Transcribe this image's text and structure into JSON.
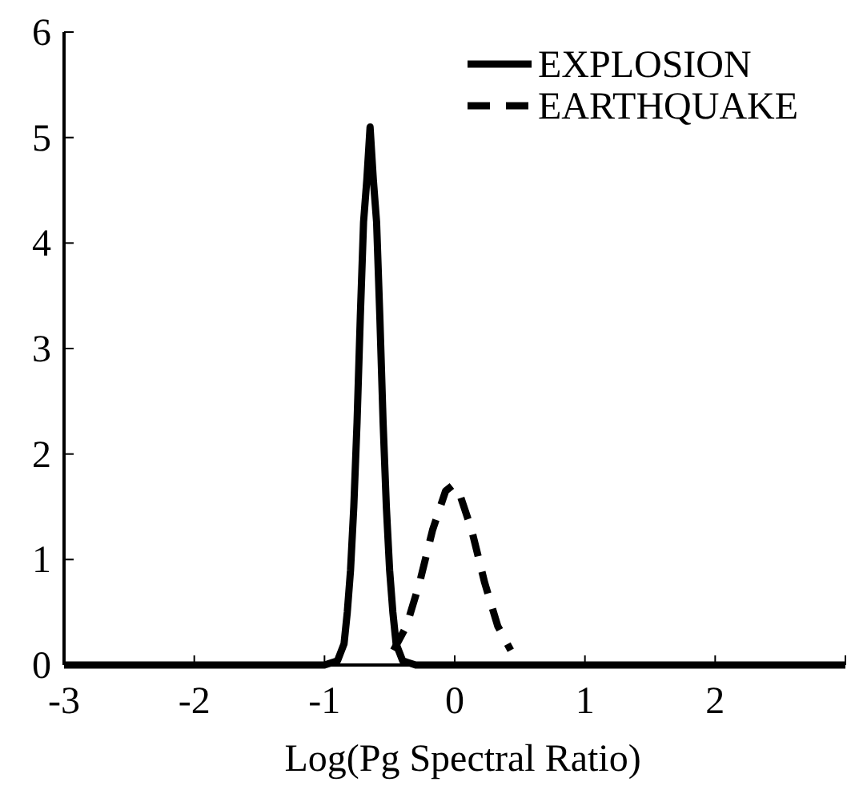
{
  "chart_data": {
    "type": "line",
    "xlabel": "Log(Pg Spectral Ratio)",
    "xlim": [
      -3,
      3
    ],
    "ylim": [
      0,
      6
    ],
    "xticks": [
      -3,
      -2,
      -1,
      0,
      1,
      2,
      {
        "value": 3,
        "label": null
      }
    ],
    "yticks": [
      0,
      1,
      2,
      3,
      4,
      5,
      6
    ],
    "grid": false,
    "legend": "top right",
    "marker": "none",
    "series": [
      {
        "name": "EXPLOSION",
        "color": "#000000",
        "line_style": "solid",
        "x": [
          -3,
          -1,
          -0.9,
          -0.85,
          -0.825,
          -0.8,
          -0.775,
          -0.75,
          -0.725,
          -0.7,
          -0.675,
          -0.65,
          -0.625,
          -0.6,
          -0.575,
          -0.55,
          -0.525,
          -0.5,
          -0.475,
          -0.45,
          -0.4,
          -0.3,
          3
        ],
        "values": [
          0,
          0,
          0.04,
          0.2,
          0.5,
          0.9,
          1.5,
          2.3,
          3.3,
          4.2,
          4.6,
          5.1,
          4.6,
          4.2,
          3.3,
          2.3,
          1.5,
          0.9,
          0.5,
          0.2,
          0.04,
          0,
          0
        ]
      },
      {
        "name": "EARTHQUAKE",
        "color": "#000000",
        "line_style": "dashed",
        "x": [
          -0.47,
          -0.37,
          -0.27,
          -0.17,
          -0.07,
          -0.02,
          0.03,
          0.13,
          0.23,
          0.33,
          0.43
        ],
        "values": [
          0.14,
          0.37,
          0.78,
          1.28,
          1.65,
          1.7,
          1.65,
          1.28,
          0.78,
          0.37,
          0.14
        ]
      }
    ]
  }
}
